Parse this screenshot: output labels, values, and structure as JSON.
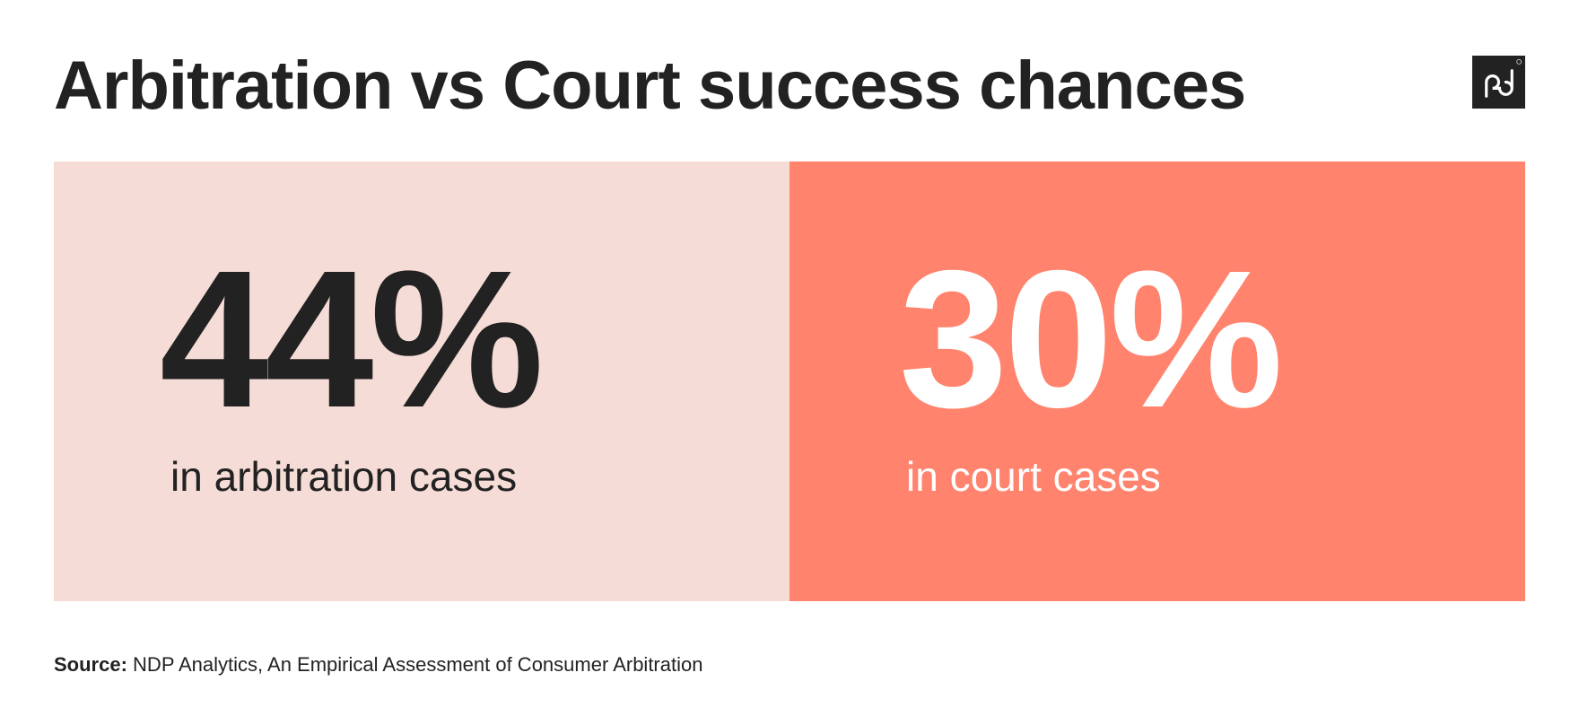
{
  "title": "Arbitration vs Court success chances",
  "logo": {
    "text": "pd",
    "background": "#222222"
  },
  "panels": [
    {
      "value": "44%",
      "label": "in arbitration cases",
      "background": "#f6dcd6",
      "text_color": "#222222"
    },
    {
      "value": "30%",
      "label": "in court cases",
      "background": "#ff836d",
      "text_color": "#ffffff"
    }
  ],
  "source": {
    "label": "Source:",
    "text": "NDP Analytics, An Empirical Assessment of Consumer Arbitration"
  }
}
